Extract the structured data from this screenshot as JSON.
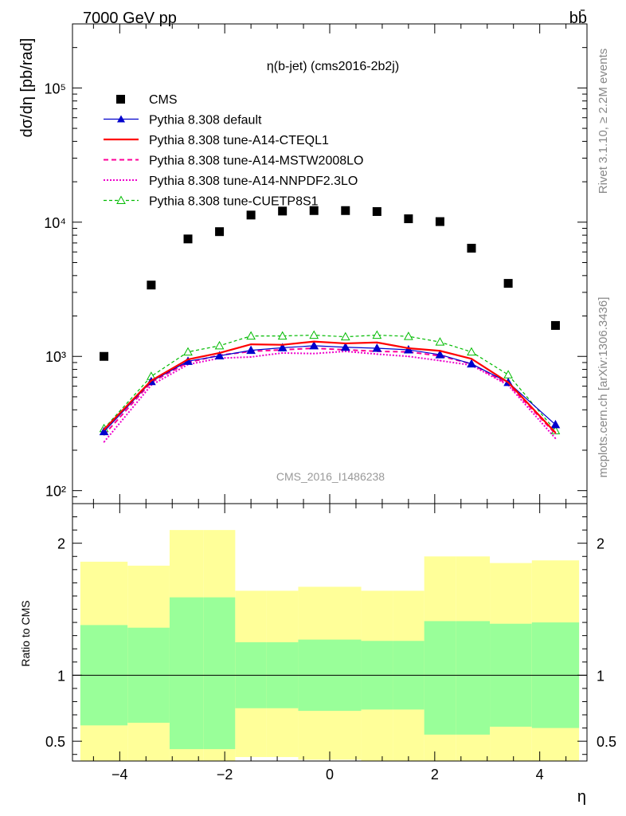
{
  "header": {
    "beam": "7000 GeV pp",
    "process": "bb̄",
    "plot_title": "η(b-jet) (cms2016-2b2j)",
    "analysis_id": "CMS_2016_I1486238",
    "side_label_top": "Rivet 3.1.10, ≥ 2.2M events",
    "side_label_bottom": "mcplots.cern.ch [arXiv:1306.3436]"
  },
  "colors": {
    "data": "#000000",
    "default": "#0000cc",
    "cteql1": "#ff0000",
    "mstw": "#ff0099",
    "nnpdf": "#ee00cc",
    "cuetp8s1": "#00bb00",
    "band_inner": "#99ff99",
    "band_outer": "#ffff99"
  },
  "chart_data": [
    {
      "type": "scatter",
      "panel": "main",
      "ylabel": "dσ/dη [pb/rad]",
      "yscale": "log",
      "ylim": [
        80,
        300000
      ],
      "xlim": [
        -4.9,
        4.9
      ],
      "y_tick_labels": [
        "10²",
        "10³",
        "10⁴",
        "10⁵"
      ],
      "legend_position": "top-left",
      "x": [
        -4.3,
        -3.4,
        -2.7,
        -2.1,
        -1.5,
        -0.9,
        -0.3,
        0.3,
        0.9,
        1.5,
        2.1,
        2.7,
        3.4,
        4.3
      ],
      "series": [
        {
          "name": "CMS",
          "style": "data",
          "values": [
            1000,
            3400,
            7500,
            8500,
            11300,
            12100,
            12200,
            12200,
            12000,
            10600,
            10100,
            6400,
            3500,
            1700
          ]
        },
        {
          "name": "Pythia 8.308 default",
          "style": "default",
          "values": [
            275,
            650,
            920,
            1010,
            1110,
            1160,
            1200,
            1170,
            1150,
            1120,
            1030,
            880,
            640,
            310
          ]
        },
        {
          "name": "Pythia 8.308 tune-A14-CTEQL1",
          "style": "cteql1",
          "values": [
            285,
            660,
            950,
            1060,
            1230,
            1220,
            1290,
            1250,
            1270,
            1150,
            1100,
            960,
            640,
            270
          ]
        },
        {
          "name": "Pythia 8.308 tune-A14-MSTW2008LO",
          "style": "mstw",
          "values": [
            260,
            640,
            900,
            1020,
            1090,
            1120,
            1150,
            1120,
            1090,
            1080,
            1010,
            880,
            620,
            265
          ]
        },
        {
          "name": "Pythia 8.308 tune-A14-NNPDF2.3LO",
          "style": "nnpdf",
          "values": [
            230,
            610,
            870,
            970,
            990,
            1060,
            1050,
            1090,
            1040,
            1000,
            930,
            860,
            610,
            245
          ]
        },
        {
          "name": "Pythia 8.308 tune-CUETP8S1",
          "style": "cuetp8s1",
          "values": [
            290,
            710,
            1080,
            1200,
            1420,
            1420,
            1440,
            1400,
            1440,
            1410,
            1280,
            1080,
            730,
            280
          ]
        }
      ]
    },
    {
      "type": "area",
      "panel": "ratio",
      "ylabel": "Ratio to CMS",
      "xlabel": "η",
      "ylim": [
        0.35,
        2.3
      ],
      "y_tick_labels": [
        "0.5",
        "1",
        "2"
      ],
      "x_tick_labels": [
        "−4",
        "−2",
        "0",
        "2",
        "4"
      ],
      "reference_line": 1.0,
      "bins": [
        {
          "lo": -4.75,
          "hi": -3.85,
          "inner": [
            0.62,
            1.38
          ],
          "outer": [
            0.35,
            1.86
          ]
        },
        {
          "lo": -3.85,
          "hi": -3.05,
          "inner": [
            0.64,
            1.36
          ],
          "outer": [
            0.35,
            1.83
          ]
        },
        {
          "lo": -3.05,
          "hi": -2.4,
          "inner": [
            0.44,
            1.59
          ],
          "outer": [
            0.35,
            2.1
          ]
        },
        {
          "lo": -2.4,
          "hi": -1.8,
          "inner": [
            0.44,
            1.59
          ],
          "outer": [
            0.35,
            2.1
          ]
        },
        {
          "lo": -1.8,
          "hi": -1.2,
          "inner": [
            0.75,
            1.25
          ],
          "outer": [
            0.38,
            1.64
          ]
        },
        {
          "lo": -1.2,
          "hi": -0.6,
          "inner": [
            0.75,
            1.25
          ],
          "outer": [
            0.38,
            1.64
          ]
        },
        {
          "lo": -0.6,
          "hi": 0.0,
          "inner": [
            0.73,
            1.27
          ],
          "outer": [
            0.36,
            1.67
          ]
        },
        {
          "lo": 0.0,
          "hi": 0.6,
          "inner": [
            0.73,
            1.27
          ],
          "outer": [
            0.36,
            1.67
          ]
        },
        {
          "lo": 0.6,
          "hi": 1.2,
          "inner": [
            0.74,
            1.26
          ],
          "outer": [
            0.35,
            1.64
          ]
        },
        {
          "lo": 1.2,
          "hi": 1.8,
          "inner": [
            0.74,
            1.26
          ],
          "outer": [
            0.35,
            1.64
          ]
        },
        {
          "lo": 1.8,
          "hi": 2.4,
          "inner": [
            0.55,
            1.41
          ],
          "outer": [
            0.35,
            1.9
          ]
        },
        {
          "lo": 2.4,
          "hi": 3.05,
          "inner": [
            0.55,
            1.41
          ],
          "outer": [
            0.35,
            1.9
          ]
        },
        {
          "lo": 3.05,
          "hi": 3.85,
          "inner": [
            0.61,
            1.39
          ],
          "outer": [
            0.35,
            1.85
          ]
        },
        {
          "lo": 3.85,
          "hi": 4.75,
          "inner": [
            0.6,
            1.4
          ],
          "outer": [
            0.35,
            1.87
          ]
        }
      ]
    }
  ]
}
